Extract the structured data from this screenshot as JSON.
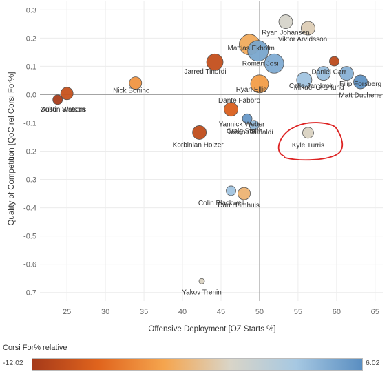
{
  "chart_data": {
    "type": "scatter",
    "xlabel": "Offensive Deployment [OZ Starts %]",
    "ylabel": "Quality of Competition [QoC rel Corsi For%]",
    "xlim": [
      21.5,
      66
    ],
    "ylim": [
      -0.73,
      0.33
    ],
    "xticks": [
      25,
      30,
      35,
      40,
      45,
      50,
      55,
      60,
      65
    ],
    "yticks": [
      0.3,
      0.2,
      0.1,
      0.0,
      -0.1,
      -0.2,
      -0.3,
      -0.4,
      -0.5,
      -0.6,
      -0.7
    ],
    "reference_lines": {
      "x": 50,
      "y": 0
    },
    "grid": true,
    "legend": {
      "title": "Corsi For% relative",
      "min_label": "-12.02",
      "max_label": "6.02",
      "min": -12.02,
      "max": 6.02,
      "marker_value": 2.2,
      "colors": [
        "#a63a1a",
        "#e0641d",
        "#f5a54e",
        "#d9d5c8",
        "#a6c8e2",
        "#5a8ec1"
      ]
    },
    "points": [
      {
        "label": "Ryan Johansen",
        "x": 53.4,
        "y": 0.258,
        "size": 10,
        "cv": 0.2
      },
      {
        "label": "Viktor Arvidsson",
        "x": 56.3,
        "y": 0.235,
        "size": 10,
        "cv": -0.6
      },
      {
        "label": "",
        "x": 48.7,
        "y": 0.177,
        "size": 15,
        "cv": -3.5
      },
      {
        "label": "Mattias Ekholm",
        "x": 49.8,
        "y": 0.155,
        "size": 15,
        "cv": 4.8
      },
      {
        "label": "Roman Josi",
        "x": 51.9,
        "y": 0.11,
        "size": 14,
        "cv": 4.5
      },
      {
        "label": "Jarred Tinordi",
        "x": 44.2,
        "y": 0.115,
        "size": 12,
        "cv": -10.0
      },
      {
        "label": "",
        "x": 59.7,
        "y": 0.118,
        "size": 7,
        "cv": -10.5
      },
      {
        "label": "Daniel Carr",
        "x": 58.3,
        "y": 0.075,
        "size": 10,
        "cv": 3.5
      },
      {
        "label": "",
        "x": 61.3,
        "y": 0.075,
        "size": 10,
        "cv": 4.2
      },
      {
        "label": "Ryan Ellis",
        "x": 50.0,
        "y": 0.038,
        "size": 13,
        "cv": -4.5
      },
      {
        "label": "Calle Jarnkrok",
        "x": 55.8,
        "y": 0.052,
        "size": 11,
        "cv": 3.2
      },
      {
        "label": "Filip Forsberg",
        "x": 63.1,
        "y": 0.045,
        "size": 10,
        "cv": 5.8
      },
      {
        "label": "Mikael Granlund",
        "x": 57.7,
        "y": 0.018,
        "size": 0,
        "cv": 0
      },
      {
        "label": "Matt Duchene",
        "x": 63.1,
        "y": -0.01,
        "size": 0,
        "cv": 0
      },
      {
        "label": "Nick Bonino",
        "x": 33.9,
        "y": 0.041,
        "size": 9,
        "cv": -5.0
      },
      {
        "label": "",
        "x": 25.0,
        "y": 0.004,
        "size": 9,
        "cv": -9.8
      },
      {
        "label": "Colton Sissons",
        "x": 23.8,
        "y": -0.018,
        "size": 7,
        "cv": -11.8
      },
      {
        "label": "Austin Watson",
        "x": 24.5,
        "y": -0.06,
        "size": 0,
        "cv": 0
      },
      {
        "label": "Dante Fabbro",
        "x": 46.3,
        "y": -0.052,
        "size": 10,
        "cv": -8.5
      },
      {
        "label": "Yannick Weber",
        "x": 48.4,
        "y": -0.085,
        "size": 7,
        "cv": 5.5
      },
      {
        "label": "Craig Smith",
        "x": 49.3,
        "y": -0.108,
        "size": 7,
        "cv": 3.8
      },
      {
        "label": "Rocco Grimaldi",
        "x": 48.7,
        "y": -0.14,
        "size": 0,
        "cv": 0
      },
      {
        "label": "Korbinian Holzer",
        "x": 42.2,
        "y": -0.134,
        "size": 10,
        "cv": -10.2
      },
      {
        "label": "Kyle Turris",
        "x": 56.3,
        "y": -0.135,
        "size": 8,
        "cv": -0.2
      },
      {
        "label": "Colin Blackwell",
        "x": 46.3,
        "y": -0.34,
        "size": 7,
        "cv": 3.2
      },
      {
        "label": "Dan Hamhuis",
        "x": 48.0,
        "y": -0.35,
        "size": 9,
        "cv": -2.8
      },
      {
        "label": "Yakov Trenin",
        "x": 42.5,
        "y": -0.66,
        "size": 4,
        "cv": -0.2
      }
    ],
    "annotation": {
      "type": "ellipse",
      "color": "#dd2222",
      "around": "Kyle Turris"
    }
  }
}
